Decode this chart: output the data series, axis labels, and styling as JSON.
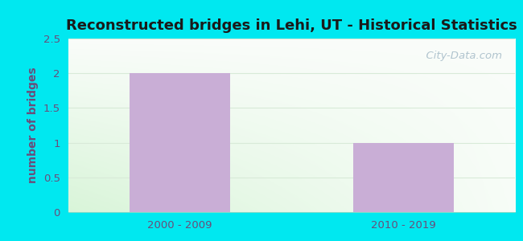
{
  "title": "Reconstructed bridges in Lehi, UT - Historical Statistics",
  "categories": [
    "2000 - 2009",
    "2010 - 2019"
  ],
  "values": [
    2,
    1
  ],
  "bar_color": "#c9aed6",
  "ylabel": "number of bridges",
  "ylim": [
    0,
    2.5
  ],
  "yticks": [
    0,
    0.5,
    1,
    1.5,
    2,
    2.5
  ],
  "title_fontsize": 13,
  "label_fontsize": 10,
  "tick_fontsize": 9.5,
  "bar_width": 0.45,
  "outer_bg": "#00e8f0",
  "watermark": "  City-Data.com",
  "watermark_color": "#b0c4ce",
  "ylabel_color": "#6b4c7a",
  "title_color": "#1a1a1a",
  "tick_color": "#6b4c7a",
  "grid_color": "#d8ead8"
}
